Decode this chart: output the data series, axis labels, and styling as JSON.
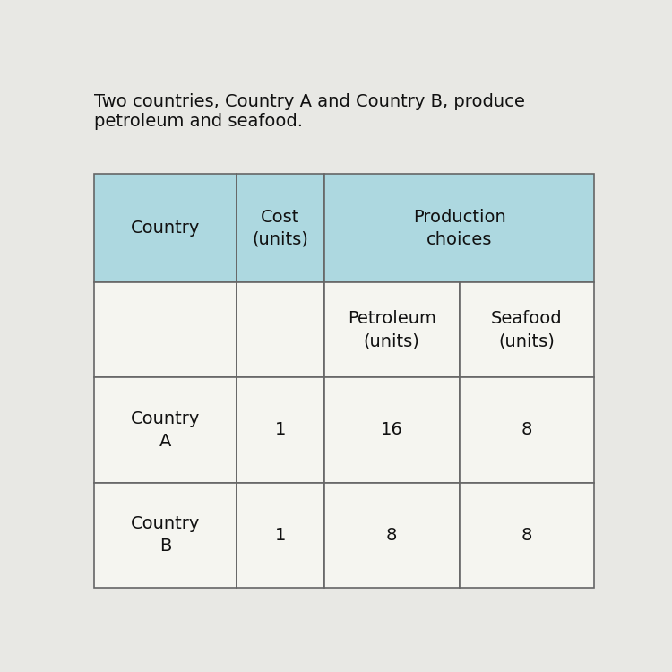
{
  "title_text": "Two countries, Country A and Country B, produce\npetroleum and seafood.",
  "header_bg_color": "#add8e0",
  "data_bg_color": "#f5f5f0",
  "border_color": "#666666",
  "title_fontsize": 14,
  "table_fontsize": 14,
  "col1_header": "Country",
  "col2_header": "Cost\n(units)",
  "col3_header": "Production\nchoices",
  "sub_col3_header": "Petroleum\n(units)",
  "sub_col4_header": "Seafood\n(units)",
  "row1_col1": "Country\nA",
  "row1_col2": "1",
  "row1_col3": "16",
  "row1_col4": "8",
  "row2_col1": "Country\nB",
  "row2_col2": "1",
  "row2_col3": "8",
  "row2_col4": "8",
  "bg_color": "#e8e8e4"
}
